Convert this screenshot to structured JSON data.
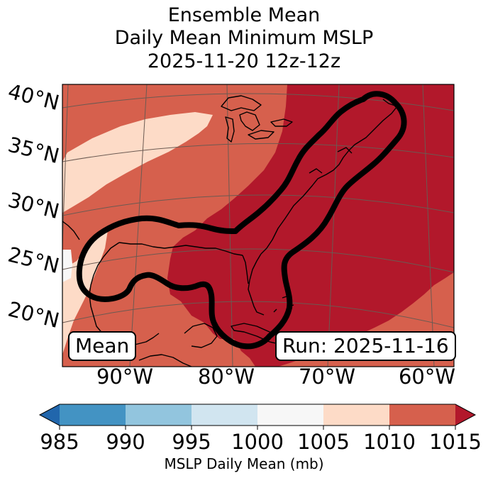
{
  "title": {
    "line1": "Ensemble Mean",
    "line2": "Daily Mean Minimum MSLP",
    "line3": "2025-11-20 12z-12z"
  },
  "map": {
    "lat_labels": [
      "40°N",
      "35°N",
      "30°N",
      "25°N",
      "20°N"
    ],
    "lon_labels": [
      "90°W",
      "80°W",
      "70°W",
      "60°W"
    ],
    "mean_label": "Mean",
    "run_label": "Run: 2025-11-16",
    "field_bands_mb": [
      "1005-1010",
      "1010-1015",
      ">1015"
    ],
    "highlight_contour": "ensemble probability region outline (black)"
  },
  "colorbar": {
    "ticks": [
      "985",
      "990",
      "995",
      "1000",
      "1005",
      "1010",
      "1015"
    ],
    "label": "MSLP Daily Mean (mb)",
    "bins": [
      {
        "range": "<985",
        "color": "#2166ac"
      },
      {
        "range": "985-990",
        "color": "#4393c3"
      },
      {
        "range": "990-995",
        "color": "#92c5de"
      },
      {
        "range": "995-1000",
        "color": "#d1e5f0"
      },
      {
        "range": "1000-1005",
        "color": "#f7f7f7"
      },
      {
        "range": "1005-1010",
        "color": "#fddbc7"
      },
      {
        "range": "1010-1015",
        "color": "#d6604d"
      },
      {
        "range": ">1015",
        "color": "#b2182b"
      }
    ]
  },
  "colors": {
    "light": "#fddbc7",
    "mid": "#d6604d",
    "dark": "#b2182b",
    "near_white": "#f7f7f7",
    "contour": "#000000"
  }
}
